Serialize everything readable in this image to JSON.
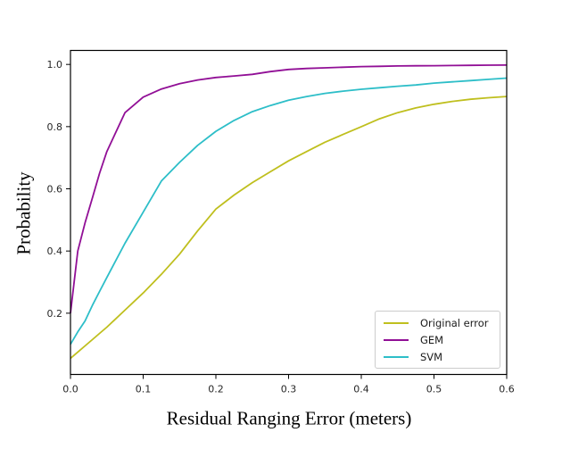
{
  "chart_data": {
    "type": "line",
    "title": "",
    "xlabel": "Residual Ranging Error (meters)",
    "ylabel": "Probability",
    "xlim": [
      0.0,
      0.6
    ],
    "ylim": [
      0.003,
      1.045
    ],
    "xticks": [
      0.0,
      0.1,
      0.2,
      0.3,
      0.4,
      0.5,
      0.6
    ],
    "xtick_labels": [
      "0.0",
      "0.1",
      "0.2",
      "0.3",
      "0.4",
      "0.5",
      "0.6"
    ],
    "yticks": [
      0.2,
      0.4,
      0.6,
      0.8,
      1.0
    ],
    "ytick_labels": [
      "0.2",
      "0.4",
      "0.6",
      "0.8",
      "1.0"
    ],
    "grid": false,
    "legend_position": "lower right",
    "x": [
      0,
      0.01,
      0.02,
      0.03,
      0.04,
      0.05,
      0.075,
      0.1,
      0.125,
      0.15,
      0.175,
      0.2,
      0.225,
      0.25,
      0.275,
      0.3,
      0.325,
      0.35,
      0.375,
      0.4,
      0.425,
      0.45,
      0.475,
      0.5,
      0.525,
      0.55,
      0.575,
      0.6
    ],
    "series": [
      {
        "name": "Original error",
        "color": "#bfbf1e",
        "values": [
          0.055,
          0.075,
          0.095,
          0.115,
          0.135,
          0.155,
          0.21,
          0.265,
          0.325,
          0.39,
          0.465,
          0.535,
          0.58,
          0.62,
          0.655,
          0.69,
          0.72,
          0.75,
          0.775,
          0.8,
          0.825,
          0.845,
          0.86,
          0.872,
          0.881,
          0.888,
          0.893,
          0.897
        ]
      },
      {
        "name": "GEM",
        "color": "#910f96",
        "values": [
          0.2,
          0.4,
          0.49,
          0.57,
          0.65,
          0.72,
          0.845,
          0.895,
          0.921,
          0.938,
          0.95,
          0.958,
          0.963,
          0.968,
          0.977,
          0.984,
          0.987,
          0.989,
          0.991,
          0.993,
          0.994,
          0.995,
          0.9955,
          0.996,
          0.9965,
          0.997,
          0.9975,
          0.998
        ]
      },
      {
        "name": "SVM",
        "color": "#2dbec8",
        "values": [
          0.1,
          0.14,
          0.175,
          0.225,
          0.27,
          0.315,
          0.425,
          0.525,
          0.625,
          0.685,
          0.74,
          0.785,
          0.82,
          0.848,
          0.868,
          0.885,
          0.897,
          0.907,
          0.914,
          0.92,
          0.925,
          0.93,
          0.934,
          0.94,
          0.944,
          0.948,
          0.952,
          0.956
        ]
      }
    ],
    "style": {
      "spine_color": "#000000",
      "tick_label_color": "#262626",
      "line_width": 1.8,
      "tick_font_size": 11
    }
  }
}
